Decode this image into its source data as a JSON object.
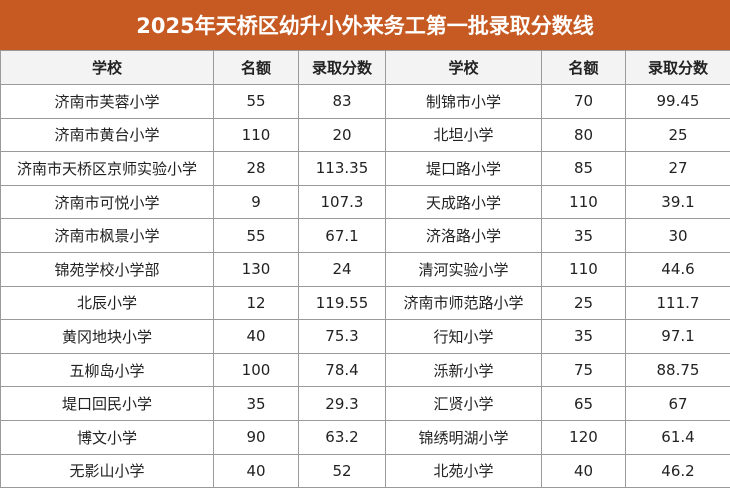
{
  "header": {
    "title": "2025年天桥区幼升小外来务工第一批录取分数线"
  },
  "table": {
    "columns": [
      "学校",
      "名额",
      "录取分数",
      "学校",
      "名额",
      "录取分数"
    ],
    "rows": [
      [
        "济南市芙蓉小学",
        55,
        83,
        "制锦市小学",
        70,
        99.45
      ],
      [
        "济南市黄台小学",
        110,
        20,
        "北坦小学",
        80,
        25
      ],
      [
        "济南市天桥区京师实验小学",
        28,
        113.35,
        "堤口路小学",
        85,
        27
      ],
      [
        "济南市可悦小学",
        9,
        107.3,
        "天成路小学",
        110,
        39.1
      ],
      [
        "济南市枫景小学",
        55,
        67.1,
        "济洛路小学",
        35,
        30
      ],
      [
        "锦苑学校小学部",
        130,
        24,
        "清河实验小学",
        110,
        44.6
      ],
      [
        "北辰小学",
        12,
        119.55,
        "济南市师范路小学",
        25,
        111.7
      ],
      [
        "黄冈地块小学",
        40,
        75.3,
        "行知小学",
        35,
        97.1
      ],
      [
        "五柳岛小学",
        100,
        78.4,
        "泺新小学",
        75,
        88.75
      ],
      [
        "堤口回民小学",
        35,
        29.3,
        "汇贤小学",
        65,
        67
      ],
      [
        "博文小学",
        90,
        63.2,
        "锦绣明湖小学",
        120,
        61.4
      ],
      [
        "无影山小学",
        40,
        52,
        "北苑小学",
        40,
        46.2
      ]
    ]
  }
}
